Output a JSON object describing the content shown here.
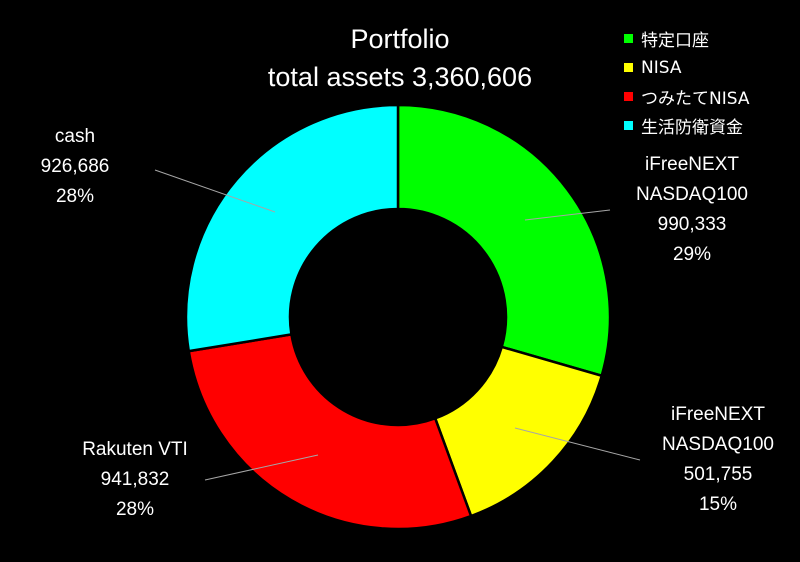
{
  "chart_data": {
    "type": "pie",
    "title": "Portfolio",
    "subtitle": "total assets 3,360,606",
    "hole": true,
    "legend_position": "top-right",
    "legend": [
      {
        "label": "特定口座",
        "color": "#00ff00"
      },
      {
        "label": "NISA",
        "color": "#ffff00"
      },
      {
        "label": "つみたてNISA",
        "color": "#ff0000"
      },
      {
        "label": "生活防衛資金",
        "color": "#00ffff"
      }
    ],
    "slices": [
      {
        "legend": "特定口座",
        "name_lines": [
          "iFreeNEXT",
          "NASDAQ100"
        ],
        "value": 990333,
        "value_label": "990,333",
        "percent_label": "29%",
        "color": "#00ff00"
      },
      {
        "legend": "NISA",
        "name_lines": [
          "iFreeNEXT",
          "NASDAQ100"
        ],
        "value": 501755,
        "value_label": "501,755",
        "percent_label": "15%",
        "color": "#ffff00"
      },
      {
        "legend": "つみたてNISA",
        "name_lines": [
          "Rakuten VTI"
        ],
        "value": 941832,
        "value_label": "941,832",
        "percent_label": "28%",
        "color": "#ff0000"
      },
      {
        "legend": "生活防衛資金",
        "name_lines": [
          "cash"
        ],
        "value": 926686,
        "value_label": "926,686",
        "percent_label": "28%",
        "color": "#00ffff"
      }
    ]
  }
}
